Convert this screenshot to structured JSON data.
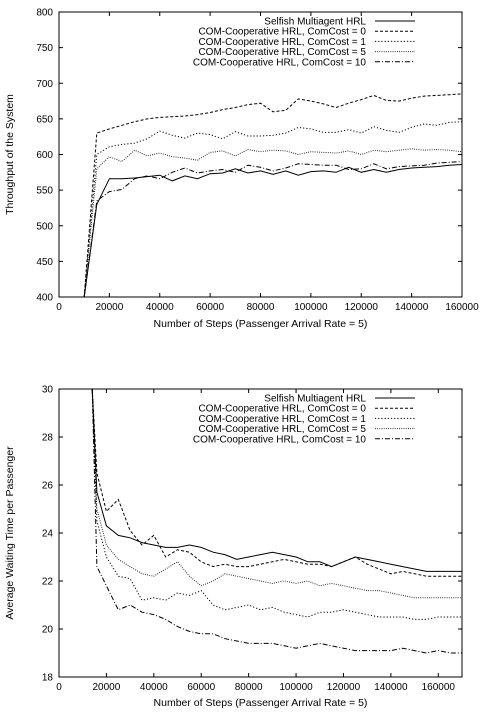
{
  "chart_data": [
    {
      "type": "line",
      "xlabel": "Number of Steps (Passenger Arrival Rate = 5)",
      "ylabel": "Throughput of the System",
      "xlim": [
        0,
        160000
      ],
      "ylim": [
        400,
        800
      ],
      "xticks": [
        0,
        20000,
        40000,
        60000,
        80000,
        100000,
        120000,
        140000,
        160000
      ],
      "yticks": [
        400,
        450,
        500,
        550,
        600,
        650,
        700,
        750,
        800
      ],
      "legend_position": "top-right",
      "grid": false,
      "series": [
        {
          "name": "Selfish Multiagent HRL",
          "style": "solid",
          "x": [
            10000,
            15000,
            20000,
            25000,
            30000,
            35000,
            40000,
            45000,
            50000,
            55000,
            60000,
            65000,
            70000,
            75000,
            80000,
            85000,
            90000,
            95000,
            100000,
            105000,
            110000,
            115000,
            120000,
            125000,
            130000,
            135000,
            140000,
            145000,
            150000,
            155000,
            160000
          ],
          "y": [
            400,
            530,
            566,
            566,
            567,
            569,
            571,
            563,
            570,
            566,
            573,
            574,
            580,
            574,
            577,
            572,
            577,
            571,
            576,
            577,
            575,
            582,
            575,
            579,
            575,
            579,
            581,
            582,
            583,
            585,
            586
          ]
        },
        {
          "name": "COM-Cooperative HRL, ComCost = 0",
          "style": "dashed",
          "x": [
            10000,
            15000,
            20000,
            25000,
            30000,
            35000,
            40000,
            45000,
            50000,
            55000,
            60000,
            65000,
            70000,
            75000,
            80000,
            85000,
            90000,
            95000,
            100000,
            105000,
            110000,
            115000,
            120000,
            125000,
            130000,
            135000,
            140000,
            145000,
            150000,
            155000,
            160000
          ],
          "y": [
            400,
            630,
            636,
            641,
            646,
            650,
            652,
            653,
            654,
            656,
            659,
            663,
            666,
            670,
            672,
            660,
            662,
            678,
            675,
            671,
            666,
            672,
            677,
            683,
            676,
            675,
            679,
            682,
            683,
            684,
            685
          ]
        },
        {
          "name": "COM-Cooperative HRL, ComCost = 1",
          "style": "dotted",
          "x": [
            10000,
            15000,
            20000,
            25000,
            30000,
            35000,
            40000,
            45000,
            50000,
            55000,
            60000,
            65000,
            70000,
            75000,
            80000,
            85000,
            90000,
            95000,
            100000,
            105000,
            110000,
            115000,
            120000,
            125000,
            130000,
            135000,
            140000,
            145000,
            150000,
            155000,
            160000
          ],
          "y": [
            400,
            600,
            611,
            614,
            616,
            622,
            633,
            627,
            623,
            630,
            628,
            622,
            632,
            626,
            626,
            627,
            630,
            638,
            636,
            631,
            631,
            635,
            630,
            639,
            634,
            631,
            638,
            643,
            641,
            645,
            646
          ]
        },
        {
          "name": "COM-Cooperative HRL, ComCost = 5",
          "style": "fine-dotted",
          "x": [
            10000,
            15000,
            20000,
            25000,
            30000,
            35000,
            40000,
            45000,
            50000,
            55000,
            60000,
            65000,
            70000,
            75000,
            80000,
            85000,
            90000,
            95000,
            100000,
            105000,
            110000,
            115000,
            120000,
            125000,
            130000,
            135000,
            140000,
            145000,
            150000,
            155000,
            160000
          ],
          "y": [
            400,
            580,
            597,
            590,
            606,
            598,
            602,
            597,
            595,
            592,
            603,
            605,
            598,
            607,
            604,
            606,
            605,
            600,
            604,
            603,
            602,
            605,
            600,
            606,
            604,
            606,
            608,
            606,
            607,
            606,
            604
          ]
        },
        {
          "name": "COM-Cooperative HRL, ComCost = 10",
          "style": "dash-dot",
          "x": [
            10000,
            15000,
            20000,
            25000,
            30000,
            35000,
            40000,
            45000,
            50000,
            55000,
            60000,
            65000,
            70000,
            75000,
            80000,
            85000,
            90000,
            95000,
            100000,
            105000,
            110000,
            115000,
            120000,
            125000,
            130000,
            135000,
            140000,
            145000,
            150000,
            155000,
            160000
          ],
          "y": [
            400,
            535,
            548,
            551,
            566,
            570,
            566,
            575,
            581,
            574,
            577,
            579,
            575,
            585,
            582,
            577,
            581,
            587,
            586,
            585,
            585,
            579,
            580,
            587,
            580,
            583,
            584,
            585,
            588,
            589,
            590
          ]
        }
      ]
    },
    {
      "type": "line",
      "xlabel": "Number of Steps (Passenger Arrival Rate = 5)",
      "ylabel": "Average Waiting Time per Passenger",
      "xlim": [
        0,
        170000
      ],
      "ylim": [
        18,
        30
      ],
      "xticks": [
        0,
        20000,
        40000,
        60000,
        80000,
        100000,
        120000,
        140000,
        160000
      ],
      "yticks": [
        18,
        20,
        22,
        24,
        26,
        28,
        30
      ],
      "legend_position": "top-right",
      "grid": false,
      "series": [
        {
          "name": "Selfish Multiagent HRL",
          "style": "solid",
          "x": [
            14000,
            16000,
            20000,
            25000,
            30000,
            35000,
            40000,
            45000,
            50000,
            55000,
            60000,
            65000,
            70000,
            75000,
            80000,
            85000,
            90000,
            95000,
            100000,
            105000,
            110000,
            115000,
            120000,
            125000,
            130000,
            135000,
            140000,
            145000,
            150000,
            155000,
            160000,
            165000,
            170000
          ],
          "y": [
            30,
            25.7,
            24.3,
            23.9,
            23.8,
            23.6,
            23.5,
            23.4,
            23.4,
            23.5,
            23.4,
            23.2,
            23.1,
            22.9,
            23.0,
            23.1,
            23.2,
            23.1,
            23.0,
            22.8,
            22.8,
            22.6,
            22.8,
            23.0,
            22.9,
            22.8,
            22.7,
            22.6,
            22.5,
            22.4,
            22.4,
            22.4,
            22.4
          ]
        },
        {
          "name": "COM-Cooperative HRL, ComCost = 0",
          "style": "dashed",
          "x": [
            14000,
            16000,
            20000,
            25000,
            30000,
            35000,
            40000,
            45000,
            50000,
            55000,
            60000,
            65000,
            70000,
            75000,
            80000,
            85000,
            90000,
            95000,
            100000,
            105000,
            110000,
            115000,
            120000,
            125000,
            130000,
            135000,
            140000,
            145000,
            150000,
            155000,
            160000,
            165000,
            170000
          ],
          "y": [
            30,
            26.5,
            24.9,
            25.4,
            24.1,
            23.5,
            23.9,
            23.0,
            23.3,
            23.2,
            22.8,
            22.6,
            22.7,
            22.6,
            22.6,
            22.7,
            22.8,
            22.9,
            22.8,
            22.7,
            22.7,
            22.6,
            22.8,
            23.0,
            22.7,
            22.5,
            22.3,
            22.4,
            22.3,
            22.2,
            22.2,
            22.2,
            22.2
          ]
        },
        {
          "name": "COM-Cooperative HRL, ComCost = 1",
          "style": "dotted",
          "x": [
            14000,
            16000,
            20000,
            25000,
            30000,
            35000,
            40000,
            45000,
            50000,
            55000,
            60000,
            65000,
            70000,
            75000,
            80000,
            85000,
            90000,
            95000,
            100000,
            105000,
            110000,
            115000,
            120000,
            125000,
            130000,
            135000,
            140000,
            145000,
            150000,
            155000,
            160000,
            165000,
            170000
          ],
          "y": [
            30,
            24.5,
            23.0,
            22.2,
            22.1,
            21.2,
            21.3,
            21.2,
            21.5,
            21.4,
            21.6,
            21.0,
            20.8,
            20.9,
            21.0,
            20.8,
            20.9,
            20.7,
            20.6,
            20.5,
            20.7,
            20.7,
            20.8,
            20.7,
            20.6,
            20.5,
            20.5,
            20.5,
            20.4,
            20.4,
            20.5,
            20.5,
            20.5
          ]
        },
        {
          "name": "COM-Cooperative HRL, ComCost = 5",
          "style": "fine-dotted",
          "x": [
            14000,
            16000,
            20000,
            25000,
            30000,
            35000,
            40000,
            45000,
            50000,
            55000,
            60000,
            65000,
            70000,
            75000,
            80000,
            85000,
            90000,
            95000,
            100000,
            105000,
            110000,
            115000,
            120000,
            125000,
            130000,
            135000,
            140000,
            145000,
            150000,
            155000,
            160000,
            165000,
            170000
          ],
          "y": [
            30,
            25.0,
            23.5,
            22.9,
            22.6,
            22.3,
            22.2,
            22.5,
            22.8,
            22.2,
            21.8,
            22.0,
            22.3,
            22.2,
            22.1,
            22.0,
            21.9,
            22.0,
            21.9,
            22.0,
            21.8,
            21.9,
            21.8,
            21.7,
            21.6,
            21.6,
            21.5,
            21.4,
            21.3,
            21.3,
            21.3,
            21.3,
            21.3
          ]
        },
        {
          "name": "COM-Cooperative HRL, ComCost = 10",
          "style": "dash-dot",
          "x": [
            14000,
            16000,
            20000,
            25000,
            30000,
            35000,
            40000,
            45000,
            50000,
            55000,
            60000,
            65000,
            70000,
            75000,
            80000,
            85000,
            90000,
            95000,
            100000,
            105000,
            110000,
            115000,
            120000,
            125000,
            130000,
            135000,
            140000,
            145000,
            150000,
            155000,
            160000,
            165000,
            170000
          ],
          "y": [
            30,
            22.6,
            21.8,
            20.8,
            21.0,
            20.7,
            20.6,
            20.4,
            20.1,
            19.9,
            19.8,
            19.8,
            19.6,
            19.5,
            19.4,
            19.4,
            19.4,
            19.3,
            19.2,
            19.3,
            19.4,
            19.3,
            19.2,
            19.1,
            19.1,
            19.1,
            19.1,
            19.2,
            19.1,
            19.0,
            19.1,
            19.0,
            19.0
          ]
        }
      ]
    }
  ]
}
